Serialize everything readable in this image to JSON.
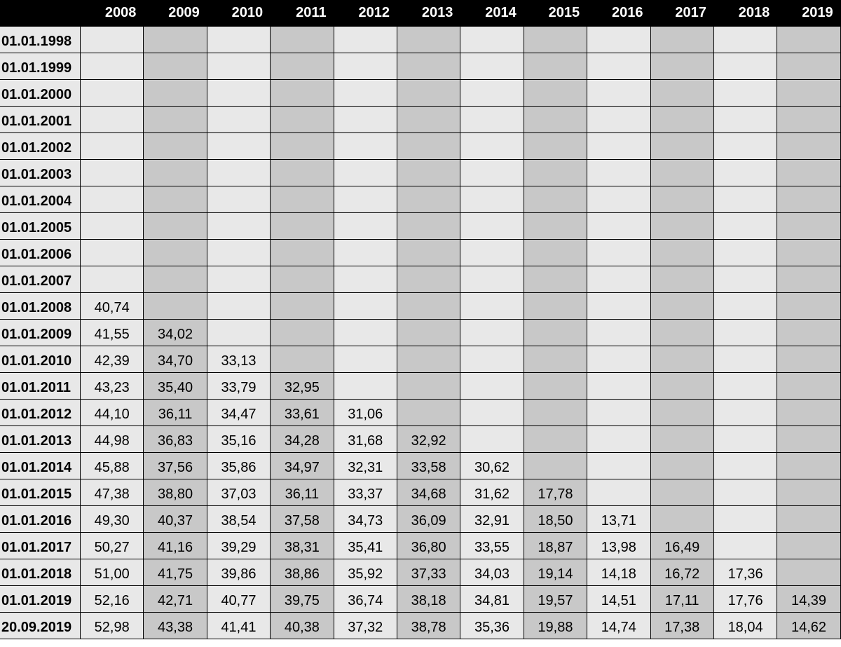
{
  "columns": [
    "2008",
    "2009",
    "2010",
    "2011",
    "2012",
    "2013",
    "2014",
    "2015",
    "2016",
    "2017",
    "2018",
    "2019"
  ],
  "rows": [
    {
      "label": "01.01.1998",
      "values": [
        "",
        "",
        "",
        "",
        "",
        "",
        "",
        "",
        "",
        "",
        "",
        ""
      ]
    },
    {
      "label": "01.01.1999",
      "values": [
        "",
        "",
        "",
        "",
        "",
        "",
        "",
        "",
        "",
        "",
        "",
        ""
      ]
    },
    {
      "label": "01.01.2000",
      "values": [
        "",
        "",
        "",
        "",
        "",
        "",
        "",
        "",
        "",
        "",
        "",
        ""
      ]
    },
    {
      "label": "01.01.2001",
      "values": [
        "",
        "",
        "",
        "",
        "",
        "",
        "",
        "",
        "",
        "",
        "",
        ""
      ]
    },
    {
      "label": "01.01.2002",
      "values": [
        "",
        "",
        "",
        "",
        "",
        "",
        "",
        "",
        "",
        "",
        "",
        ""
      ]
    },
    {
      "label": "01.01.2003",
      "values": [
        "",
        "",
        "",
        "",
        "",
        "",
        "",
        "",
        "",
        "",
        "",
        ""
      ]
    },
    {
      "label": "01.01.2004",
      "values": [
        "",
        "",
        "",
        "",
        "",
        "",
        "",
        "",
        "",
        "",
        "",
        ""
      ]
    },
    {
      "label": "01.01.2005",
      "values": [
        "",
        "",
        "",
        "",
        "",
        "",
        "",
        "",
        "",
        "",
        "",
        ""
      ]
    },
    {
      "label": "01.01.2006",
      "values": [
        "",
        "",
        "",
        "",
        "",
        "",
        "",
        "",
        "",
        "",
        "",
        ""
      ]
    },
    {
      "label": "01.01.2007",
      "values": [
        "",
        "",
        "",
        "",
        "",
        "",
        "",
        "",
        "",
        "",
        "",
        ""
      ]
    },
    {
      "label": "01.01.2008",
      "values": [
        "40,74",
        "",
        "",
        "",
        "",
        "",
        "",
        "",
        "",
        "",
        "",
        ""
      ]
    },
    {
      "label": "01.01.2009",
      "values": [
        "41,55",
        "34,02",
        "",
        "",
        "",
        "",
        "",
        "",
        "",
        "",
        "",
        ""
      ]
    },
    {
      "label": "01.01.2010",
      "values": [
        "42,39",
        "34,70",
        "33,13",
        "",
        "",
        "",
        "",
        "",
        "",
        "",
        "",
        ""
      ]
    },
    {
      "label": "01.01.2011",
      "values": [
        "43,23",
        "35,40",
        "33,79",
        "32,95",
        "",
        "",
        "",
        "",
        "",
        "",
        "",
        ""
      ]
    },
    {
      "label": "01.01.2012",
      "values": [
        "44,10",
        "36,11",
        "34,47",
        "33,61",
        "31,06",
        "",
        "",
        "",
        "",
        "",
        "",
        ""
      ]
    },
    {
      "label": "01.01.2013",
      "values": [
        "44,98",
        "36,83",
        "35,16",
        "34,28",
        "31,68",
        "32,92",
        "",
        "",
        "",
        "",
        "",
        ""
      ]
    },
    {
      "label": "01.01.2014",
      "values": [
        "45,88",
        "37,56",
        "35,86",
        "34,97",
        "32,31",
        "33,58",
        "30,62",
        "",
        "",
        "",
        "",
        ""
      ]
    },
    {
      "label": "01.01.2015",
      "values": [
        "47,38",
        "38,80",
        "37,03",
        "36,11",
        "33,37",
        "34,68",
        "31,62",
        "17,78",
        "",
        "",
        "",
        ""
      ]
    },
    {
      "label": "01.01.2016",
      "values": [
        "49,30",
        "40,37",
        "38,54",
        "37,58",
        "34,73",
        "36,09",
        "32,91",
        "18,50",
        "13,71",
        "",
        "",
        ""
      ]
    },
    {
      "label": "01.01.2017",
      "values": [
        "50,27",
        "41,16",
        "39,29",
        "38,31",
        "35,41",
        "36,80",
        "33,55",
        "18,87",
        "13,98",
        "16,49",
        "",
        ""
      ]
    },
    {
      "label": "01.01.2018",
      "values": [
        "51,00",
        "41,75",
        "39,86",
        "38,86",
        "35,92",
        "37,33",
        "34,03",
        "19,14",
        "14,18",
        "16,72",
        "17,36",
        ""
      ]
    },
    {
      "label": "01.01.2019",
      "values": [
        "52,16",
        "42,71",
        "40,77",
        "39,75",
        "36,74",
        "38,18",
        "34,81",
        "19,57",
        "14,51",
        "17,11",
        "17,76",
        "14,39"
      ]
    },
    {
      "label": "20.09.2019",
      "values": [
        "52,98",
        "43,38",
        "41,41",
        "40,38",
        "37,32",
        "38,78",
        "35,36",
        "19,88",
        "14,74",
        "17,38",
        "18,04",
        "14,62"
      ]
    }
  ],
  "colors": {
    "header_bg": "#000000",
    "header_text": "#ffffff",
    "light_column": "#e8e8e8",
    "dark_column": "#c8c8c8",
    "border": "#000000"
  }
}
